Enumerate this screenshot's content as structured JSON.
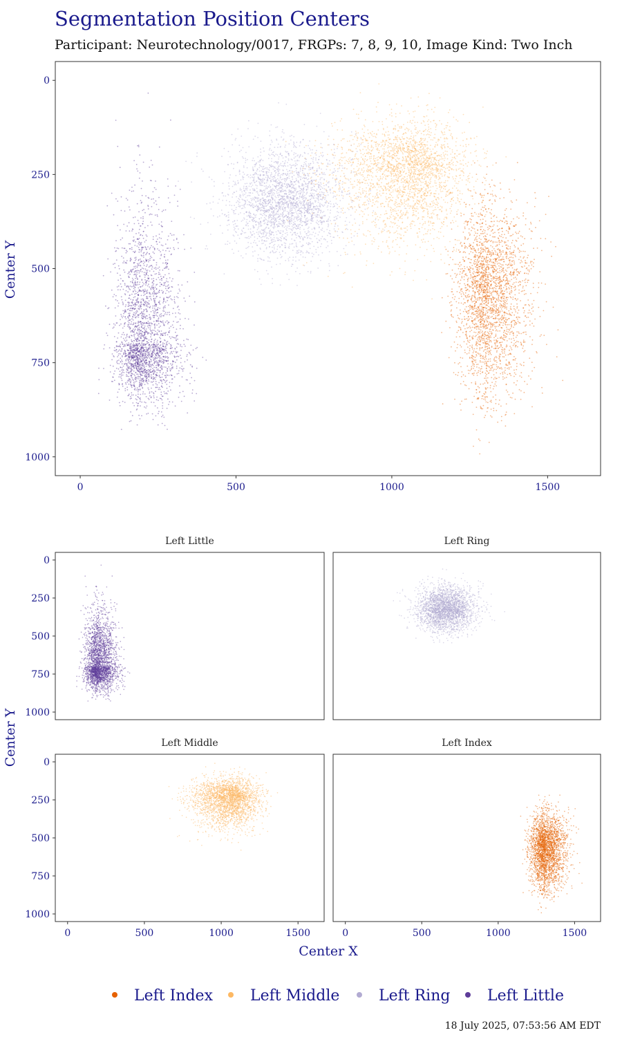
{
  "chart_data": {
    "type": "scatter",
    "title": "Segmentation Position Centers",
    "subtitle": "Participant: Neurotechnology/0017, FRGPs: 7, 8, 9, 10, Image Kind: Two Inch",
    "xlabel": "Center X",
    "ylabel": "Center Y",
    "caption": "18 July 2025, 07:53:56 AM EDT",
    "legend_position": "bottom",
    "grid": false,
    "main_panel": {
      "xlim": [
        -80,
        1670
      ],
      "ylim": [
        -50,
        1050
      ],
      "y_reversed": true,
      "x_ticks": [
        0,
        500,
        1000,
        1500
      ],
      "y_ticks": [
        0,
        250,
        500,
        750,
        1000
      ]
    },
    "facets": {
      "xlim": [
        -80,
        1670
      ],
      "ylim": [
        -50,
        1050
      ],
      "y_reversed": true,
      "x_ticks": [
        0,
        500,
        1000,
        1500
      ],
      "y_ticks": [
        0,
        250,
        500,
        750,
        1000
      ],
      "order": [
        "Left Little",
        "Left Ring",
        "Left Middle",
        "Left Index"
      ]
    },
    "series": [
      {
        "name": "Left Index",
        "color": "#E66101",
        "center": [
          1310,
          570
        ],
        "spread_x": [
          50,
          70
        ],
        "spread_y": [
          115,
          140
        ],
        "n_points": 2600
      },
      {
        "name": "Left Middle",
        "color": "#FDB863",
        "center": [
          1050,
          240
        ],
        "spread_x": [
          120,
          95
        ],
        "spread_y": [
          65,
          95
        ],
        "n_points": 2600
      },
      {
        "name": "Left Ring",
        "color": "#B2ABD2",
        "center": [
          660,
          320
        ],
        "spread_x": [
          95,
          95
        ],
        "spread_y": [
          75,
          75
        ],
        "n_points": 2600
      },
      {
        "name": "Left Little",
        "color": "#5E3C99",
        "center": [
          205,
          700
        ],
        "spread_x": [
          45,
          60
        ],
        "spread_y": [
          185,
          75
        ],
        "n_points": 2600
      }
    ]
  }
}
